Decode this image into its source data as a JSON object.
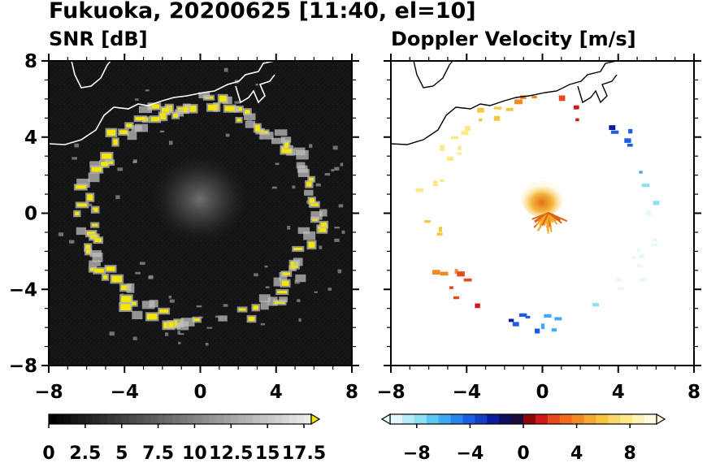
{
  "title": "Fukuoka, 20200625 [11:40, el=10]",
  "chart_data": [
    {
      "type": "heatmap",
      "title": "SNR [dB]",
      "xlim": [
        -8,
        8
      ],
      "ylim": [
        -8,
        8
      ],
      "xticks": [
        "−8",
        "−4",
        "0",
        "4",
        "8"
      ],
      "yticks": [
        "8",
        "4",
        "0",
        "−4",
        "−8"
      ],
      "colormap": "gray-to-yellow",
      "background": "#111111",
      "colorbar": {
        "min": 0,
        "max": 18,
        "extend": "max",
        "ticks": [
          "0",
          "2.5",
          "5",
          "7.5",
          "10",
          "12.5",
          "15",
          "17.5"
        ]
      },
      "echo_ring_radius_km": 6,
      "coastline": true
    },
    {
      "type": "heatmap",
      "title": "Doppler Velocity [m/s]",
      "xlim": [
        -8,
        8
      ],
      "ylim": [
        -8,
        8
      ],
      "xticks": [
        "−8",
        "−4",
        "0",
        "4",
        "8"
      ],
      "yticks": [],
      "colormap": "blue-white-red-yellow",
      "background": "#ffffff",
      "colorbar": {
        "min": -10,
        "max": 10,
        "extend": "both",
        "ticks": [
          "−8",
          "−4",
          "0",
          "4",
          "8"
        ]
      },
      "coastline": true
    }
  ]
}
